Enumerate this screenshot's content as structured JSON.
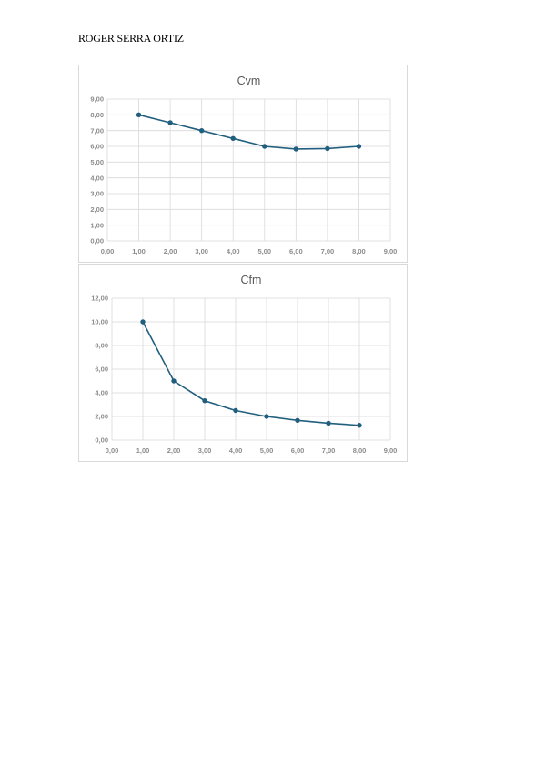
{
  "document": {
    "author": "ROGER SERRA ORTIZ"
  },
  "colors": {
    "series": "#215f7e",
    "grid": "#d9d9d9",
    "text": "#595959"
  },
  "chart_data": [
    {
      "type": "scatter",
      "title": "Cvm",
      "xlabel": "",
      "ylabel": "",
      "xlim": [
        0,
        9
      ],
      "ylim": [
        0,
        9
      ],
      "xstep": 1,
      "ystep": 1,
      "grid": true,
      "tick_format": "comma-2",
      "series": [
        {
          "x": [
            1,
            2,
            3,
            4,
            5,
            6,
            7,
            8
          ],
          "y": [
            8.0,
            7.5,
            7.0,
            6.5,
            6.0,
            5.83,
            5.86,
            6.0
          ]
        }
      ]
    },
    {
      "type": "scatter",
      "title": "Cfm",
      "xlabel": "",
      "ylabel": "",
      "xlim": [
        0,
        9
      ],
      "ylim": [
        0,
        12
      ],
      "xstep": 1,
      "ystep": 2,
      "grid": true,
      "tick_format": "comma-2",
      "series": [
        {
          "x": [
            1,
            2,
            3,
            4,
            5,
            6,
            7,
            8
          ],
          "y": [
            10.0,
            5.0,
            3.33,
            2.5,
            2.0,
            1.67,
            1.43,
            1.25
          ]
        }
      ]
    }
  ]
}
